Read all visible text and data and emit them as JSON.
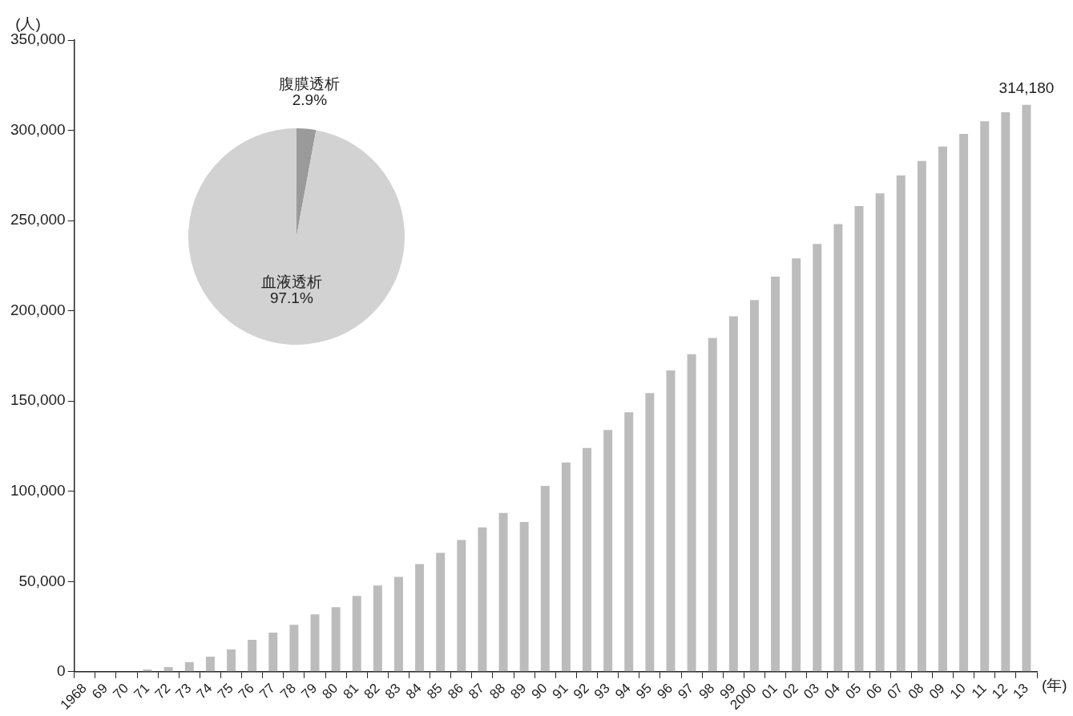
{
  "chart_data": [
    {
      "type": "bar",
      "ylabel": "(人)",
      "xlabel": "(年)",
      "categories": [
        "1968",
        "69",
        "70",
        "71",
        "72",
        "73",
        "74",
        "75",
        "76",
        "77",
        "78",
        "79",
        "80",
        "81",
        "82",
        "83",
        "84",
        "85",
        "86",
        "87",
        "88",
        "89",
        "90",
        "91",
        "92",
        "93",
        "94",
        "95",
        "96",
        "97",
        "98",
        "99",
        "2000",
        "01",
        "02",
        "03",
        "04",
        "05",
        "06",
        "07",
        "08",
        "09",
        "10",
        "11",
        "12",
        "13"
      ],
      "values": [
        0,
        0,
        0,
        1300,
        2600,
        5400,
        8400,
        12400,
        17700,
        21700,
        26000,
        31800,
        35800,
        42000,
        47800,
        52600,
        59700,
        65900,
        73000,
        80000,
        88000,
        83000,
        103000,
        116000,
        124000,
        134000,
        143700,
        154400,
        167000,
        176000,
        185000,
        197000,
        206000,
        219000,
        229000,
        237000,
        248000,
        258000,
        265000,
        275000,
        283000,
        291000,
        298000,
        305000,
        310000,
        314180
      ],
      "value_labels": [
        null,
        null,
        null,
        null,
        null,
        null,
        null,
        null,
        null,
        null,
        null,
        null,
        null,
        null,
        null,
        null,
        null,
        null,
        null,
        null,
        null,
        null,
        null,
        null,
        null,
        null,
        null,
        null,
        null,
        null,
        null,
        null,
        null,
        null,
        null,
        null,
        null,
        null,
        null,
        null,
        null,
        null,
        null,
        null,
        null,
        "314,180"
      ],
      "color": "#bcbcbc",
      "ylim": [
        0,
        350000
      ],
      "yticks": [
        {
          "value": 0,
          "label": "0"
        },
        {
          "value": 50000,
          "label": "50,000"
        },
        {
          "value": 100000,
          "label": "100,000"
        },
        {
          "value": 150000,
          "label": "150,000"
        },
        {
          "value": 200000,
          "label": "200,000"
        },
        {
          "value": 250000,
          "label": "250,000"
        },
        {
          "value": 300000,
          "label": "300,000"
        },
        {
          "value": 350000,
          "label": "350,000"
        }
      ],
      "legend": false
    },
    {
      "type": "pie",
      "categories": [
        "腹膜透析",
        "血液透析"
      ],
      "values": [
        2.9,
        97.1
      ],
      "colors": [
        "#9a9a9a",
        "#d2d2d2"
      ],
      "value_labels": [
        "2.9%",
        "97.1%"
      ],
      "legend": false
    }
  ]
}
